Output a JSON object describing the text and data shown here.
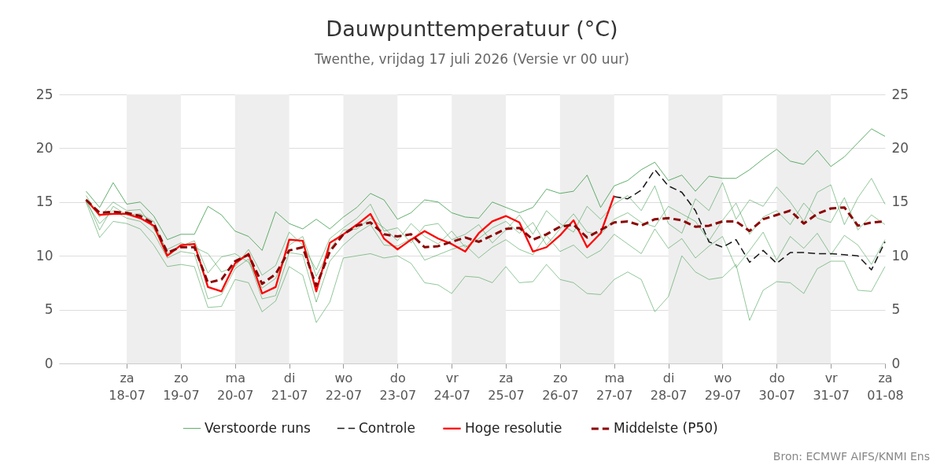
{
  "chart_data": {
    "type": "line",
    "title": "Dauwpunttemperatuur (°C)",
    "subtitle": "Twenthe, vrijdag 17 juli 2026 (Versie vr 00 uur)",
    "x": [
      "2026-07-17T06:00",
      "2026-07-17T12:00",
      "2026-07-17T18:00",
      "2026-07-18T00:00",
      "2026-07-18T06:00",
      "2026-07-18T12:00",
      "2026-07-18T18:00",
      "2026-07-19T00:00",
      "2026-07-19T06:00",
      "2026-07-19T12:00",
      "2026-07-19T18:00",
      "2026-07-20T00:00",
      "2026-07-20T06:00",
      "2026-07-20T12:00",
      "2026-07-20T18:00",
      "2026-07-21T00:00",
      "2026-07-21T06:00",
      "2026-07-21T12:00",
      "2026-07-21T18:00",
      "2026-07-22T00:00",
      "2026-07-22T06:00",
      "2026-07-22T12:00",
      "2026-07-22T18:00",
      "2026-07-23T00:00",
      "2026-07-23T06:00",
      "2026-07-23T12:00",
      "2026-07-23T18:00",
      "2026-07-24T00:00",
      "2026-07-24T06:00",
      "2026-07-24T12:00",
      "2026-07-24T18:00",
      "2026-07-25T00:00",
      "2026-07-25T06:00",
      "2026-07-25T12:00",
      "2026-07-25T18:00",
      "2026-07-26T00:00",
      "2026-07-26T06:00",
      "2026-07-26T12:00",
      "2026-07-26T18:00",
      "2026-07-27T00:00",
      "2026-07-27T06:00",
      "2026-07-27T12:00",
      "2026-07-27T18:00",
      "2026-07-28T00:00",
      "2026-07-28T06:00",
      "2026-07-28T12:00",
      "2026-07-28T18:00",
      "2026-07-29T00:00",
      "2026-07-29T06:00",
      "2026-07-29T12:00",
      "2026-07-29T18:00",
      "2026-07-30T00:00",
      "2026-07-30T06:00",
      "2026-07-30T12:00",
      "2026-07-30T18:00",
      "2026-07-31T00:00",
      "2026-07-31T06:00",
      "2026-07-31T12:00",
      "2026-07-31T18:00",
      "2026-08-01T00:00"
    ],
    "xlim": [
      "2026-07-16T18:00",
      "2026-08-01T00:00"
    ],
    "xticks": [
      {
        "value": "2026-07-18",
        "label": "za\n18-07"
      },
      {
        "value": "2026-07-19",
        "label": "zo\n19-07"
      },
      {
        "value": "2026-07-20",
        "label": "ma\n20-07"
      },
      {
        "value": "2026-07-21",
        "label": "di\n21-07"
      },
      {
        "value": "2026-07-22",
        "label": "wo\n22-07"
      },
      {
        "value": "2026-07-23",
        "label": "do\n23-07"
      },
      {
        "value": "2026-07-24",
        "label": "vr\n24-07"
      },
      {
        "value": "2026-07-25",
        "label": "za\n25-07"
      },
      {
        "value": "2026-07-26",
        "label": "zo\n26-07"
      },
      {
        "value": "2026-07-27",
        "label": "ma\n27-07"
      },
      {
        "value": "2026-07-28",
        "label": "di\n28-07"
      },
      {
        "value": "2026-07-29",
        "label": "wo\n29-07"
      },
      {
        "value": "2026-07-30",
        "label": "do\n30-07"
      },
      {
        "value": "2026-07-31",
        "label": "vr\n31-07"
      },
      {
        "value": "2026-08-01",
        "label": "za\n01-08"
      }
    ],
    "ylim": [
      0,
      25
    ],
    "yticks": [
      0,
      5,
      10,
      15,
      20,
      25
    ],
    "y2lim": [
      0,
      25
    ],
    "y2ticks": [
      0,
      5,
      10,
      15,
      20,
      25
    ],
    "grid": "y",
    "legend": "bottom",
    "bands": [
      {
        "axis": "x",
        "from": "2026-07-18",
        "to": "2026-07-19",
        "color": "#eeeeee"
      },
      {
        "axis": "x",
        "from": "2026-07-20",
        "to": "2026-07-21",
        "color": "#eeeeee"
      },
      {
        "axis": "x",
        "from": "2026-07-22",
        "to": "2026-07-23",
        "color": "#eeeeee"
      },
      {
        "axis": "x",
        "from": "2026-07-24",
        "to": "2026-07-25",
        "color": "#eeeeee"
      },
      {
        "axis": "x",
        "from": "2026-07-26",
        "to": "2026-07-27",
        "color": "#eeeeee"
      },
      {
        "axis": "x",
        "from": "2026-07-28",
        "to": "2026-07-29",
        "color": "#eeeeee"
      },
      {
        "axis": "x",
        "from": "2026-07-30",
        "to": "2026-07-31",
        "color": "#eeeeee"
      }
    ],
    "series": [
      {
        "name": "Verstoorde runs",
        "color": "#3a9a48",
        "line_style": "solid",
        "values": [
          16.0,
          14.5,
          16.8,
          14.8,
          15.0,
          13.7,
          11.5,
          12.0,
          12.0,
          14.6,
          13.8,
          12.3,
          11.8,
          10.5,
          14.1,
          13.0,
          12.5,
          13.4,
          12.5,
          13.6,
          14.5,
          15.8,
          15.2,
          13.4,
          14.0,
          15.2,
          15.0,
          14.0,
          13.6,
          13.5,
          15.0,
          14.5,
          14.0,
          14.5,
          16.2,
          15.8,
          16.0,
          17.5,
          14.5,
          16.5,
          17.0,
          18.0,
          18.7,
          17.0,
          17.5,
          16.0,
          17.4,
          17.2,
          17.2,
          18.0,
          19.0,
          19.9,
          18.8,
          18.5,
          19.8,
          18.3,
          19.2,
          20.5,
          21.8,
          21.1
        ]
      },
      {
        "color": "#3a9a48",
        "line_style": "solid",
        "values": [
          15.0,
          11.7,
          13.2,
          13.0,
          12.5,
          11.0,
          9.0,
          9.2,
          9.0,
          5.2,
          5.3,
          7.8,
          7.5,
          4.8,
          5.8,
          9.0,
          8.2,
          3.8,
          5.7,
          9.8,
          10.0,
          10.2,
          9.8,
          10.0,
          9.3,
          7.5,
          7.3,
          6.5,
          8.1,
          8.0,
          7.5,
          9.0,
          7.5,
          7.6,
          9.2,
          7.8,
          7.5,
          6.5,
          6.4,
          7.8,
          8.5,
          7.8,
          4.8,
          6.2,
          10.0,
          8.5,
          7.8,
          8.0,
          9.2,
          4.0,
          6.8,
          7.6,
          7.5,
          6.5,
          8.8,
          9.5,
          9.5,
          6.8,
          6.7,
          9.0
        ]
      },
      {
        "color": "#3a9a48",
        "line_style": "solid",
        "values": [
          15.6,
          13.6,
          15.0,
          14.2,
          14.3,
          12.5,
          10.6,
          11.2,
          10.8,
          10.2,
          8.5,
          9.0,
          10.6,
          8.2,
          9.1,
          12.2,
          11.0,
          8.7,
          11.6,
          12.6,
          13.5,
          14.8,
          12.3,
          12.6,
          11.2,
          12.8,
          13.0,
          11.5,
          12.0,
          12.9,
          11.2,
          12.4,
          13.8,
          12.0,
          14.2,
          13.0,
          12.2,
          14.6,
          13.4,
          14.8,
          15.6,
          14.2,
          16.5,
          13.0,
          12.1,
          15.3,
          14.2,
          16.8,
          13.4,
          15.2,
          14.6,
          16.4,
          15.0,
          13.2,
          15.9,
          16.6,
          12.9,
          15.4,
          17.2,
          14.8
        ]
      },
      {
        "color": "#3a9a48",
        "line_style": "solid",
        "values": [
          15.0,
          13.0,
          14.2,
          13.5,
          13.2,
          12.1,
          9.8,
          10.4,
          10.2,
          6.0,
          6.4,
          8.8,
          9.7,
          6.0,
          6.3,
          10.3,
          10.1,
          5.7,
          9.5,
          11.0,
          12.1,
          12.9,
          11.0,
          10.9,
          11.6,
          9.6,
          10.1,
          10.6,
          11.0,
          9.8,
          10.8,
          11.5,
          10.6,
          10.1,
          11.9,
          10.4,
          11.0,
          9.8,
          10.5,
          12.0,
          11.1,
          10.2,
          12.5,
          10.7,
          11.6,
          9.8,
          10.9,
          11.8,
          8.9,
          10.5,
          12.2,
          9.6,
          11.8,
          10.7,
          12.1,
          10.1,
          11.9,
          11.0,
          9.2,
          11.5
        ]
      },
      {
        "color": "#3a9a48",
        "line_style": "solid",
        "values": [
          15.3,
          12.4,
          14.6,
          13.8,
          13.9,
          13.2,
          10.2,
          10.9,
          11.4,
          8.4,
          9.9,
          10.2,
          9.4,
          7.0,
          7.9,
          11.0,
          11.8,
          8.1,
          10.6,
          12.4,
          12.5,
          13.5,
          12.6,
          11.4,
          13.0,
          11.8,
          11.1,
          12.3,
          10.8,
          11.6,
          12.6,
          13.2,
          12.1,
          13.1,
          11.0,
          12.5,
          13.9,
          12.2,
          12.0,
          13.4,
          14.0,
          13.1,
          12.7,
          14.6,
          13.9,
          13.2,
          11.4,
          13.3,
          14.9,
          12.0,
          13.6,
          14.2,
          12.9,
          14.9,
          13.5,
          13.1,
          15.4,
          12.4,
          13.8,
          12.9
        ]
      },
      {
        "name": "Controle",
        "color": "#1a1a1a",
        "line_style": "dashed",
        "values": [
          null,
          null,
          null,
          null,
          null,
          null,
          null,
          null,
          null,
          null,
          null,
          null,
          null,
          null,
          null,
          null,
          null,
          null,
          null,
          null,
          null,
          null,
          null,
          null,
          null,
          null,
          null,
          null,
          null,
          null,
          null,
          null,
          null,
          null,
          null,
          null,
          null,
          null,
          null,
          15.5,
          15.3,
          16.1,
          18.0,
          16.5,
          15.9,
          14.2,
          11.3,
          10.8,
          11.5,
          9.4,
          10.5,
          9.3,
          10.3,
          10.3,
          10.2,
          10.2,
          10.1,
          10.0,
          8.7,
          11.3
        ]
      },
      {
        "name": "Hoge resolutie",
        "color": "#ff0000",
        "line_style": "solid",
        "values": [
          15.2,
          13.8,
          13.9,
          13.9,
          13.5,
          12.8,
          10.0,
          11.0,
          11.1,
          7.1,
          6.7,
          9.3,
          10.2,
          6.5,
          7.1,
          11.5,
          11.4,
          6.7,
          11.2,
          12.0,
          12.9,
          13.9,
          11.6,
          10.6,
          11.5,
          12.3,
          11.6,
          11.1,
          10.4,
          12.1,
          13.2,
          13.7,
          13.1,
          10.4,
          10.8,
          11.9,
          13.3,
          10.8,
          12.1,
          15.6,
          null,
          null,
          null,
          null,
          null,
          null,
          null,
          null,
          null,
          null,
          null,
          null,
          null,
          null,
          null,
          null,
          null,
          null,
          null,
          null
        ]
      },
      {
        "name": "Middelste (P50)",
        "color": "#8b0000",
        "line_style": "dashed",
        "values": [
          15.2,
          14.0,
          14.1,
          14.0,
          13.7,
          13.0,
          10.3,
          10.8,
          10.8,
          7.5,
          7.8,
          9.5,
          10.1,
          7.4,
          8.3,
          10.5,
          10.8,
          7.2,
          10.4,
          12.0,
          12.8,
          13.1,
          12.0,
          11.8,
          12.0,
          10.8,
          10.9,
          11.3,
          11.7,
          11.3,
          11.9,
          12.5,
          12.6,
          11.5,
          12.0,
          12.7,
          12.9,
          11.7,
          12.4,
          13.1,
          13.2,
          12.8,
          13.4,
          13.5,
          13.3,
          12.7,
          12.8,
          13.2,
          13.2,
          12.3,
          13.4,
          13.8,
          14.2,
          13.0,
          13.9,
          14.4,
          14.5,
          12.8,
          13.1,
          13.2
        ]
      }
    ],
    "annotations": [
      "Bron: ECMWF AIFS/KNMI Ens"
    ]
  }
}
